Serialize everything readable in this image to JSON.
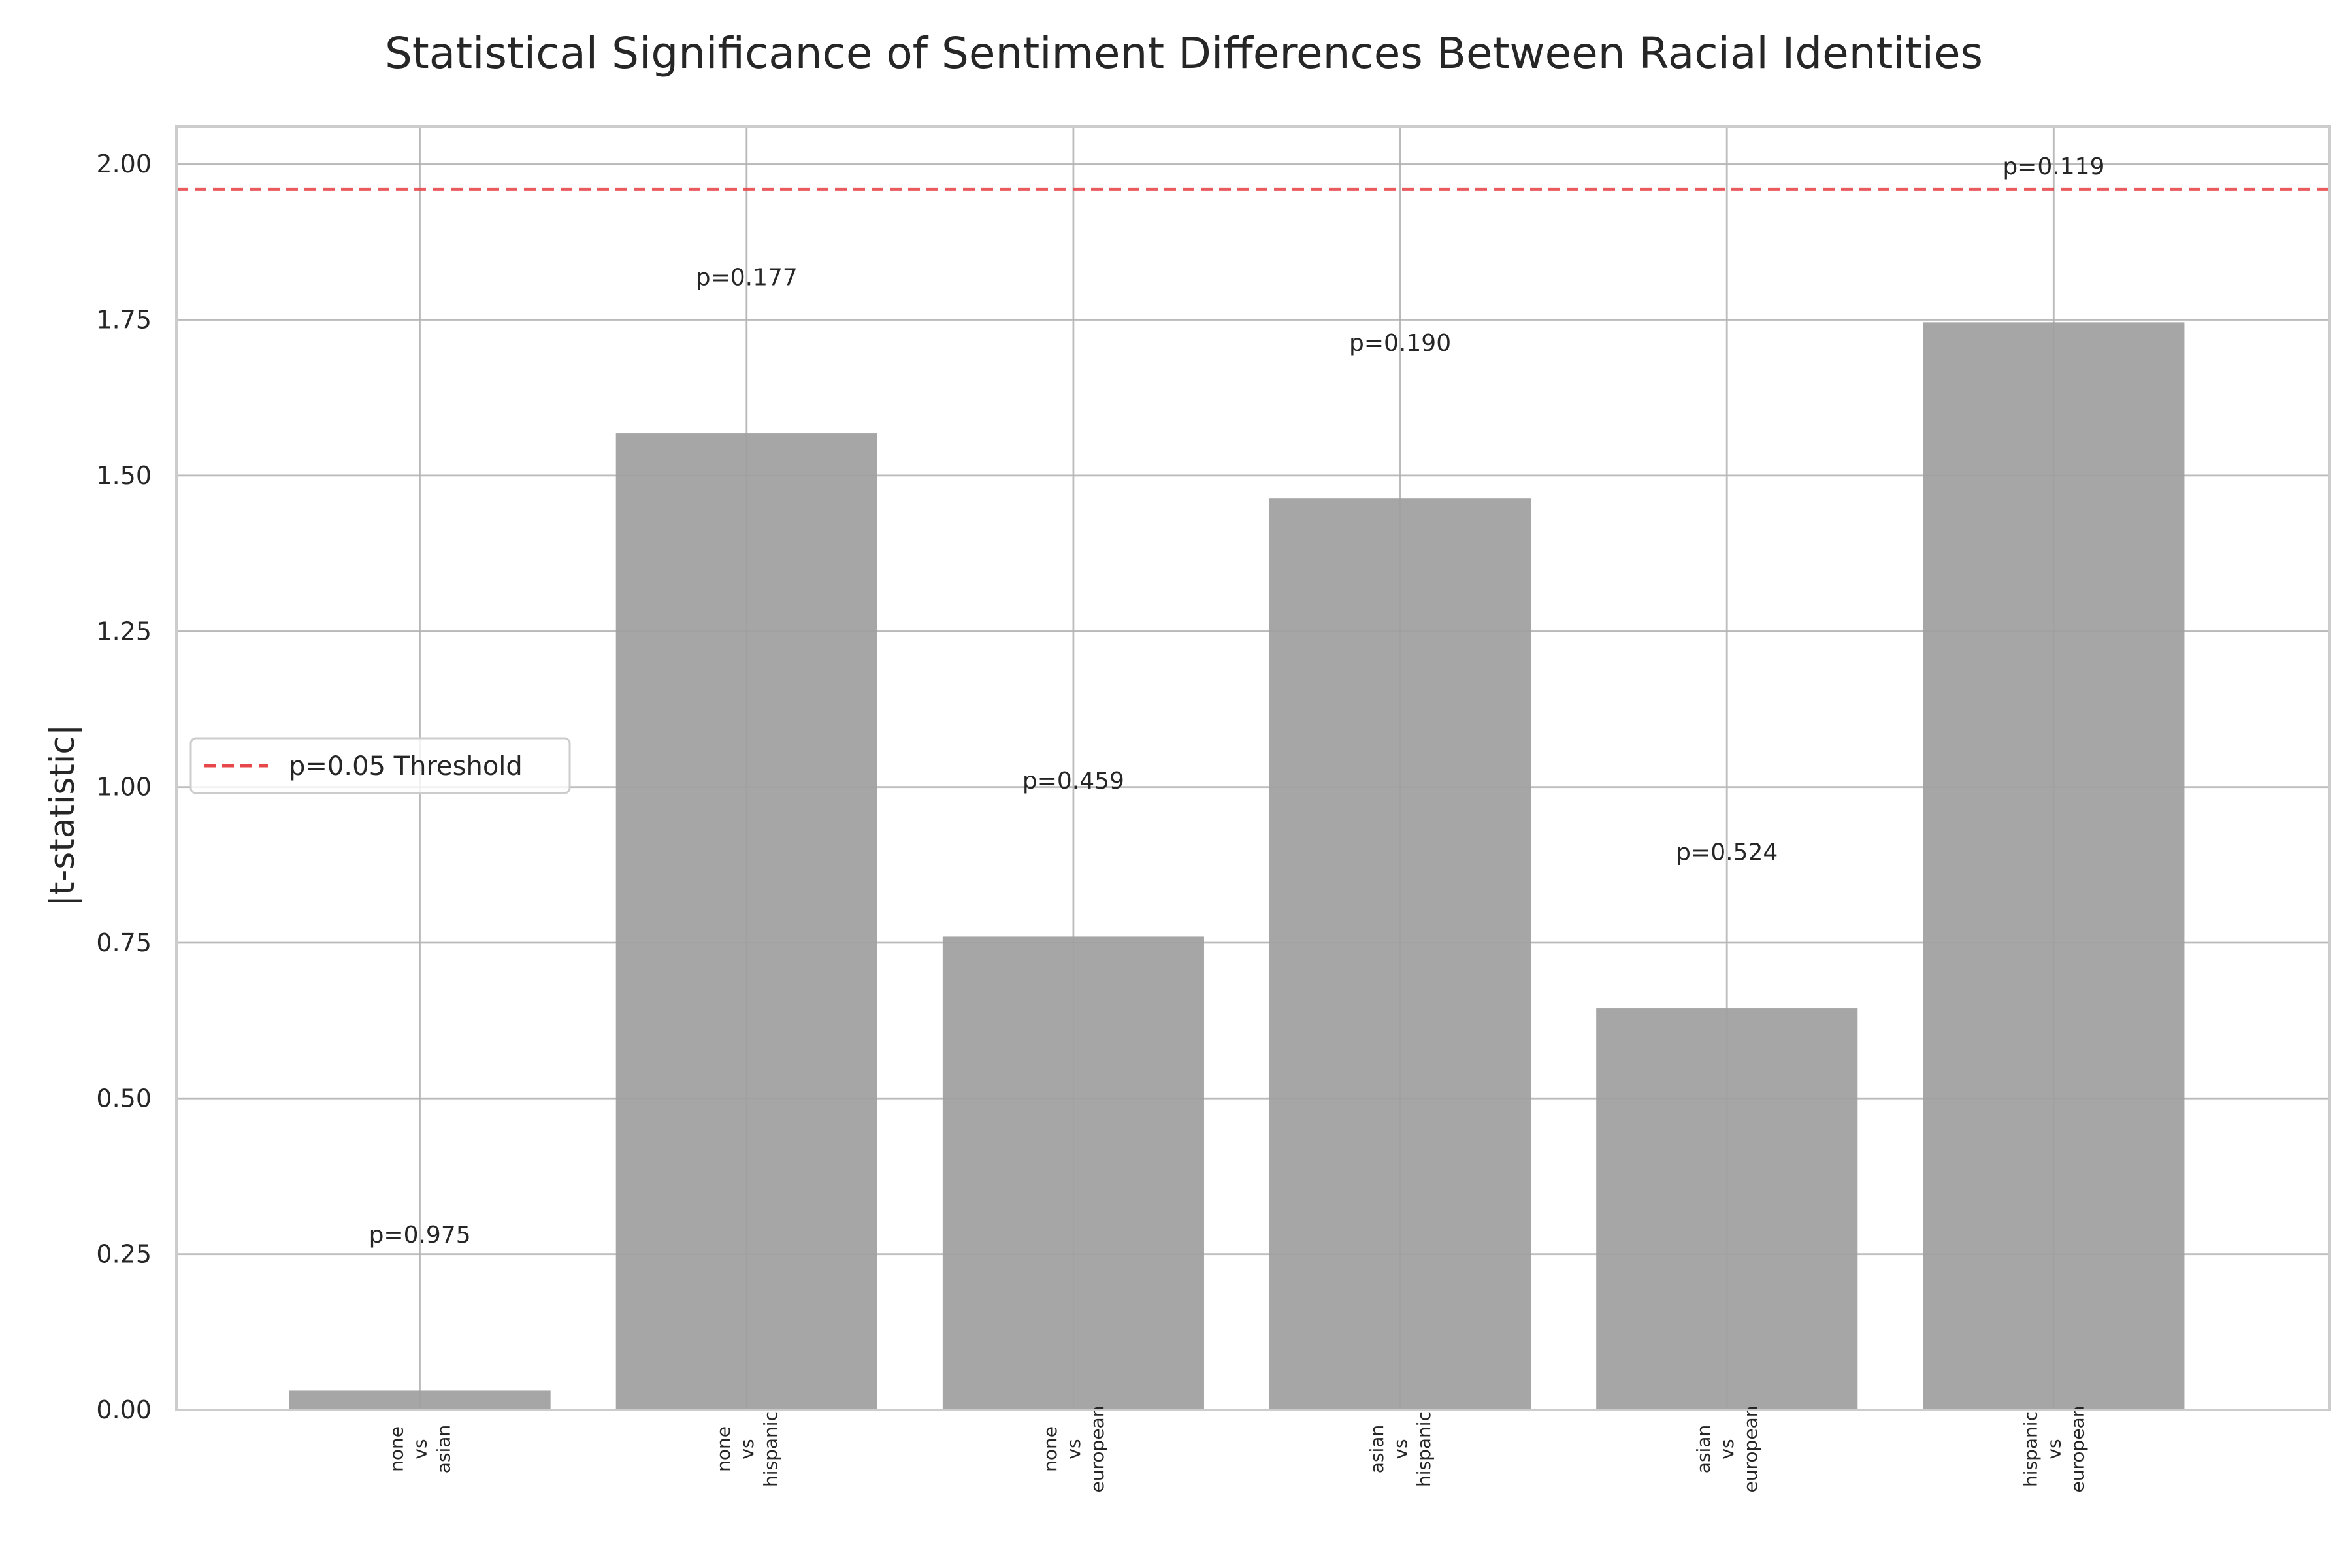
{
  "chart_data": {
    "type": "bar",
    "title": "Statistical Significance of Sentiment Differences Between Racial Identities",
    "xlabel": "",
    "ylabel": "|t-statistic|",
    "categories": [
      [
        "none",
        "vs",
        "asian"
      ],
      [
        "none",
        "vs",
        "hispanic"
      ],
      [
        "none",
        "vs",
        "european"
      ],
      [
        "asian",
        "vs",
        "hispanic"
      ],
      [
        "asian",
        "vs",
        "european"
      ],
      [
        "hispanic",
        "vs",
        "european"
      ]
    ],
    "values": [
      0.031,
      1.568,
      0.76,
      1.463,
      0.645,
      1.746
    ],
    "bar_labels": [
      "p=0.975",
      "p=0.177",
      "p=0.459",
      "p=0.190",
      "p=0.524",
      "p=0.119"
    ],
    "ylim": [
      0,
      2.06
    ],
    "yticks": [
      "0.00",
      "0.25",
      "0.50",
      "0.75",
      "1.00",
      "1.25",
      "1.50",
      "1.75",
      "2.00"
    ],
    "threshold": {
      "value": 1.96,
      "label": "p=0.05 Threshold",
      "color": "#e8474a"
    },
    "bar_color": "#a6a6a6",
    "grid": true,
    "legend_position": "center-left"
  }
}
